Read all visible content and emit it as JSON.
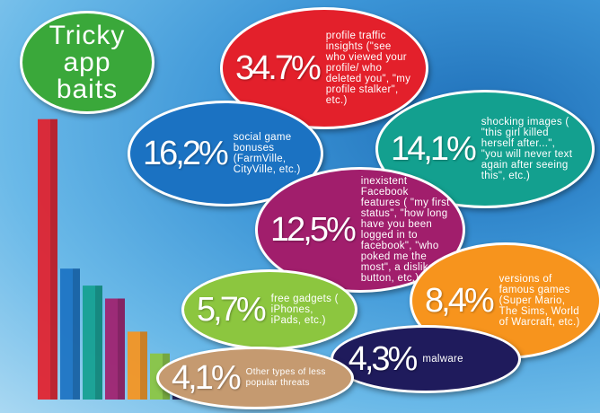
{
  "chart_data": {
    "type": "bar",
    "title": "Tricky app baits",
    "title_color": "#3aa83a",
    "categories": [
      "profile traffic insights (\"see who viewed your profile/ who deleted you\", \"my profile stalker\", etc.)",
      "social game bonuses (FarmVille, CityVille, etc.)",
      "shocking images ( \"this girl killed herself after...\", \"you will never text again after seeing this\", etc.)",
      "inexistent Facebook features ( \"my first status\", \"how long have you been logged in to facebook\", \"who poked me the most\", a dislike button, etc.)",
      "free gadgets ( iPhones, iPads, etc.)",
      "versions of famous games (Super Mario, The Sims, World of Warcraft, etc.)",
      "malware",
      "Other types of less popular threats"
    ],
    "values": [
      34.7,
      16.2,
      14.1,
      12.5,
      5.7,
      8.4,
      4.3,
      4.1
    ],
    "value_labels": [
      "34.7%",
      "16,2%",
      "14,1%",
      "12,5%",
      "5,7%",
      "8,4%",
      "4,3%",
      "4,1%"
    ],
    "colors": [
      "#e3202b",
      "#1b72c2",
      "#13a08f",
      "#a11e6c",
      "#8cc63f",
      "#f7941d",
      "#1f1b5c",
      "#c59a70"
    ]
  }
}
